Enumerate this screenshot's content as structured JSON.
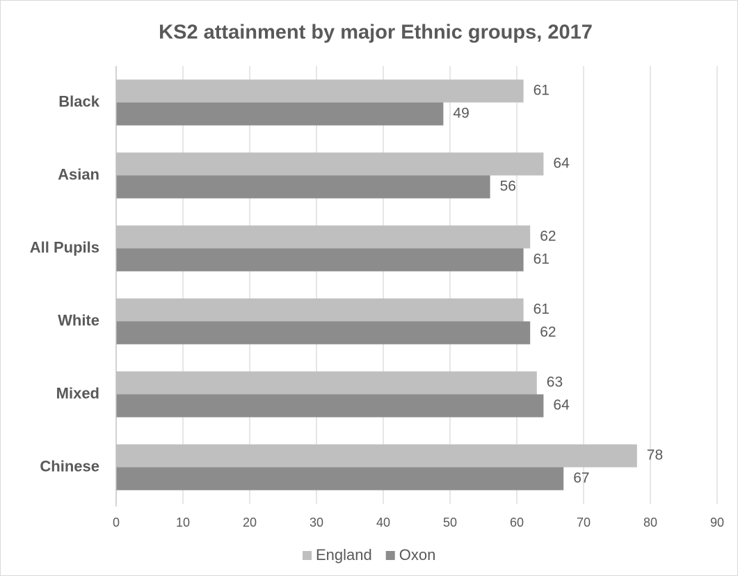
{
  "chart_data": {
    "type": "hbar",
    "title": "KS2 attainment by major Ethnic groups, 2017",
    "categories": [
      "Black",
      "Asian",
      "All Pupils",
      "White",
      "Mixed",
      "Chinese"
    ],
    "series": [
      {
        "name": "England",
        "color": "#bfbfbf",
        "values": [
          61,
          64,
          62,
          61,
          63,
          78
        ]
      },
      {
        "name": "Oxon",
        "color": "#8c8c8c",
        "values": [
          49,
          56,
          61,
          62,
          64,
          67
        ]
      }
    ],
    "xlim": [
      0,
      90
    ],
    "xticks": [
      0,
      10,
      20,
      30,
      40,
      50,
      60,
      70,
      80,
      90
    ],
    "grid": true,
    "legend": "bottom"
  }
}
